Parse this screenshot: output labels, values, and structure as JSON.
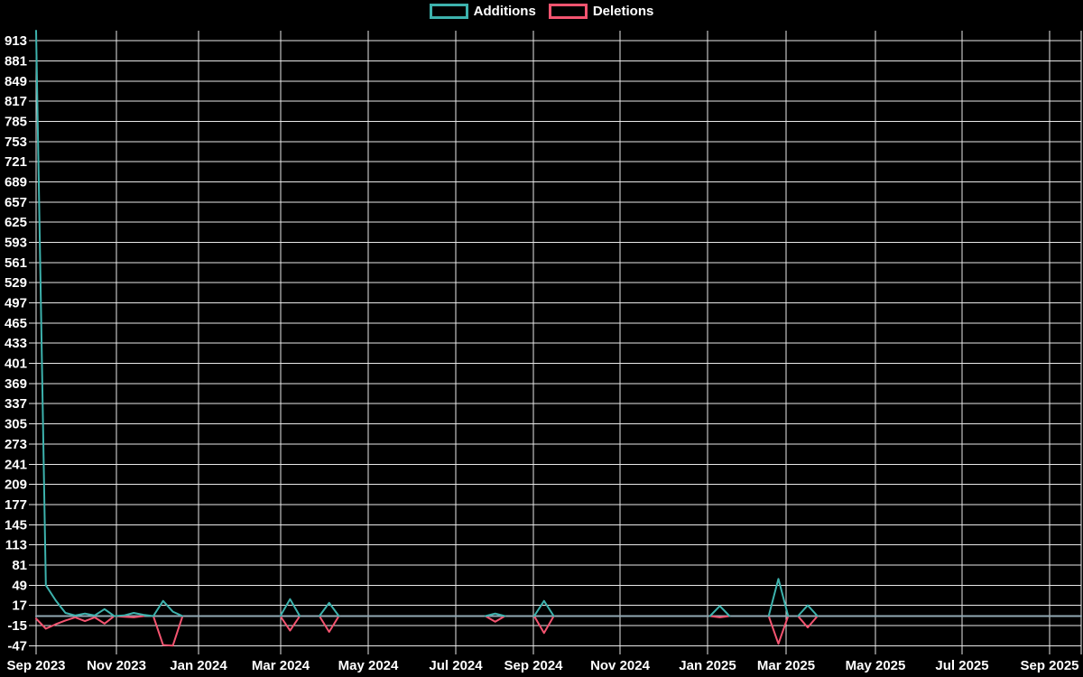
{
  "legend": {
    "additions_label": "Additions",
    "deletions_label": "Deletions"
  },
  "colors": {
    "background": "#000000",
    "grid": "#e8e8e8",
    "text": "#ffffff",
    "additions": "#3db2ad",
    "deletions": "#f45470",
    "zero_line": "#92a9b4"
  },
  "chart_data": {
    "type": "line",
    "title": "",
    "description": "Weekly additions and deletions (code frequency) from Sep 2023 to Sep 2025",
    "grid": true,
    "legend_position": "top-center",
    "x_axis": {
      "unit": "week",
      "tick_labels": [
        "Sep 2023",
        "Nov 2023",
        "Jan 2024",
        "Mar 2024",
        "May 2024",
        "Jul 2024",
        "Sep 2024",
        "Nov 2024",
        "Jan 2025",
        "Mar 2025",
        "May 2025",
        "Jul 2025",
        "Sep 2025"
      ]
    },
    "y_axis": {
      "min": -47,
      "max": 929,
      "tick_step": 32,
      "tick_labels": [
        913,
        881,
        849,
        817,
        785,
        753,
        721,
        689,
        657,
        625,
        593,
        561,
        529,
        497,
        465,
        433,
        401,
        369,
        337,
        305,
        273,
        241,
        209,
        177,
        145,
        113,
        81,
        49,
        17,
        -15,
        -47
      ]
    },
    "series": [
      {
        "name": "Additions",
        "color": "#3db2ad",
        "values": [
          929,
          49,
          25,
          5,
          1,
          4,
          1,
          11,
          0,
          1,
          5,
          2,
          0,
          24,
          7,
          0,
          0,
          0,
          0,
          0,
          0,
          0,
          0,
          0,
          0,
          0,
          27,
          0,
          0,
          0,
          21,
          0,
          0,
          0,
          0,
          0,
          0,
          0,
          0,
          0,
          0,
          0,
          0,
          0,
          0,
          0,
          0,
          4,
          0,
          0,
          0,
          0,
          24,
          0,
          0,
          0,
          0,
          0,
          0,
          0,
          0,
          0,
          0,
          0,
          0,
          0,
          0,
          0,
          0,
          0,
          16,
          0,
          0,
          0,
          0,
          0,
          59,
          0,
          0,
          17,
          0,
          0,
          0,
          0,
          0,
          0,
          0,
          0,
          0,
          0,
          0,
          0,
          0,
          0,
          0,
          0,
          0,
          0,
          0,
          0,
          0,
          0,
          0,
          0,
          0,
          0,
          0,
          0
        ]
      },
      {
        "name": "Deletions",
        "color": "#f45470",
        "values": [
          -4,
          -20,
          -13,
          -7,
          -2,
          -8,
          -2,
          -12,
          0,
          -1,
          -2,
          0,
          0,
          -46,
          -47,
          0,
          0,
          0,
          0,
          0,
          0,
          0,
          0,
          0,
          0,
          0,
          -23,
          0,
          0,
          0,
          -25,
          0,
          0,
          0,
          0,
          0,
          0,
          0,
          0,
          0,
          0,
          0,
          0,
          0,
          0,
          0,
          0,
          -9,
          0,
          0,
          0,
          0,
          -27,
          0,
          0,
          0,
          0,
          0,
          0,
          0,
          0,
          0,
          0,
          0,
          0,
          0,
          0,
          0,
          0,
          0,
          -2,
          0,
          0,
          0,
          0,
          0,
          -44,
          0,
          0,
          -18,
          0,
          0,
          0,
          0,
          0,
          0,
          0,
          0,
          0,
          0,
          0,
          0,
          0,
          0,
          0,
          0,
          0,
          0,
          0,
          0,
          0,
          0,
          0,
          0,
          0,
          0,
          0,
          0
        ]
      }
    ]
  }
}
